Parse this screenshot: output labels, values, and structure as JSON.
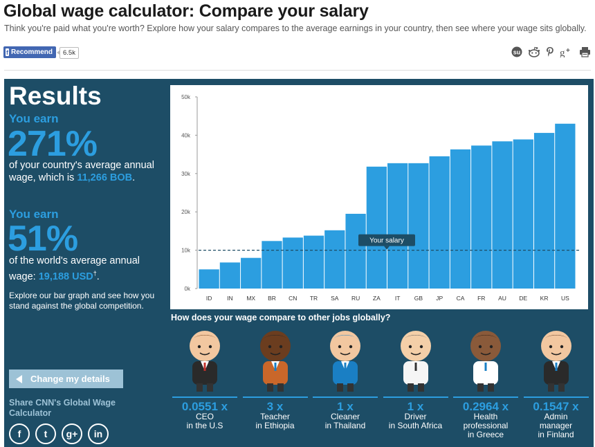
{
  "header": {
    "title": "Global wage calculator: Compare your salary",
    "subtitle": "Think you're paid what you're worth? Explore how your salary compares to the average earnings in your country, then see where your wage sits globally."
  },
  "facebook": {
    "label": "Recommend",
    "count": "6.5k"
  },
  "share_icons": [
    "stumbleupon-icon",
    "reddit-icon",
    "pinterest-icon",
    "google-plus-icon",
    "print-icon"
  ],
  "results": {
    "heading": "Results",
    "country": {
      "lead": "You earn",
      "percent": "271%",
      "desc_before": "of your country's average annual wage, which is ",
      "amount": "11,266 BOB",
      "desc_after": "."
    },
    "world": {
      "lead": "You earn",
      "percent": "51%",
      "desc_before": "of the world's average annual wage: ",
      "amount": "19,188 USD",
      "dagger": "†",
      "desc_after": "."
    },
    "explore_text": "Explore our bar graph and see how you stand against the global competition."
  },
  "change_button": "Change my details",
  "share_cnn": "Share CNN's Global Wage Calculator",
  "social": [
    "facebook-icon",
    "twitter-icon",
    "google-plus-icon",
    "linkedin-icon"
  ],
  "social_glyphs": [
    "f",
    "t",
    "g+",
    "in"
  ],
  "colors": {
    "panel": "#1d4d66",
    "accent": "#2c9ee0",
    "bar": "#2c9ee0",
    "button": "#9dc2d6"
  },
  "chart_data": {
    "type": "bar",
    "categories": [
      "ID",
      "IN",
      "MX",
      "BR",
      "CN",
      "TR",
      "SA",
      "RU",
      "ZA",
      "IT",
      "GB",
      "JP",
      "CA",
      "FR",
      "AU",
      "DE",
      "KR",
      "US"
    ],
    "values": [
      5000,
      6800,
      8000,
      12400,
      13300,
      13800,
      15200,
      19500,
      31800,
      32700,
      32700,
      34500,
      36300,
      37300,
      38400,
      38900,
      40600,
      43000
    ],
    "ylim": [
      0,
      50000
    ],
    "yticks": [
      0,
      10000,
      20000,
      30000,
      40000,
      50000
    ],
    "ytick_labels": [
      "0k",
      "10k",
      "20k",
      "30k",
      "40k",
      "50k"
    ],
    "reference_line": {
      "value": 10000,
      "label": "Your salary"
    },
    "title": "",
    "xlabel": "",
    "ylabel": "",
    "grid": false
  },
  "jobs_section": {
    "title": "How does your wage compare to other jobs globally?",
    "jobs": [
      {
        "ratio": "0.0551 x",
        "lines": [
          "CEO",
          "in the U.S"
        ],
        "figure": "ceo-figure"
      },
      {
        "ratio": "3 x",
        "lines": [
          "Teacher",
          "in Ethiopia"
        ],
        "figure": "teacher-figure"
      },
      {
        "ratio": "1 x",
        "lines": [
          "Cleaner",
          "in Thailand"
        ],
        "figure": "cleaner-figure"
      },
      {
        "ratio": "1 x",
        "lines": [
          "Driver",
          "in South Africa"
        ],
        "figure": "driver-figure"
      },
      {
        "ratio": "0.2964 x",
        "lines": [
          "Health",
          "professional",
          "in Greece"
        ],
        "figure": "doctor-figure"
      },
      {
        "ratio": "0.1547 x",
        "lines": [
          "Admin",
          "manager",
          "in Finland"
        ],
        "figure": "admin-figure"
      }
    ]
  }
}
